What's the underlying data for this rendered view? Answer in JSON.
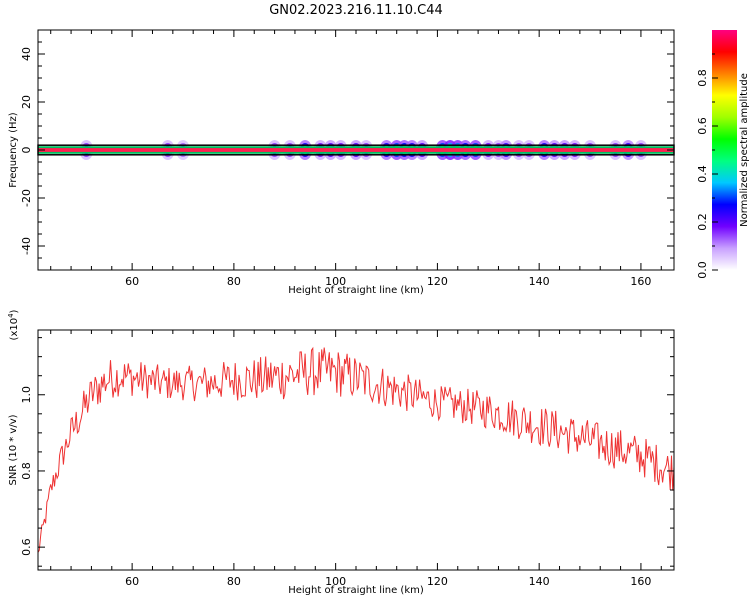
{
  "title": "GN02.2023.216.11.10.C44",
  "chart_data": [
    {
      "type": "heatmap",
      "xlabel": "Height of straight line (km)",
      "ylabel": "Frequency (Hz)",
      "xlim": [
        41.5,
        166.5
      ],
      "ylim": [
        -50,
        50
      ],
      "x_ticks": [
        60,
        80,
        100,
        120,
        140,
        160
      ],
      "y_ticks": [
        -40,
        -20,
        0,
        20,
        40
      ],
      "colorbar": {
        "label": "Normalized spectral amplitude",
        "range": [
          0,
          1
        ],
        "ticks": [
          0.0,
          0.2,
          0.4,
          0.6,
          0.8
        ],
        "tick_labels": [
          "0.0",
          "0.2",
          "0.4",
          "0.6",
          "0.8"
        ],
        "colormap": [
          "#ffffff",
          "#c8a0ff",
          "#7000ff",
          "#0000ff",
          "#00c8ff",
          "#00ff80",
          "#00ff00",
          "#a0ff00",
          "#ffff00",
          "#ff8000",
          "#ff0000",
          "#ff0080"
        ]
      },
      "band": {
        "center_hz": 0,
        "core_halfwidth_hz": 0.8,
        "box_halfwidth_hz": 2,
        "core_color": "#ff2050",
        "edge_color": "#00c060",
        "box_color": "#000000"
      },
      "blobs": [
        {
          "x": 51,
          "amp": 0.3
        },
        {
          "x": 67,
          "amp": 0.3
        },
        {
          "x": 70,
          "amp": 0.25
        },
        {
          "x": 88,
          "amp": 0.3
        },
        {
          "x": 91,
          "amp": 0.3
        },
        {
          "x": 94,
          "amp": 0.5
        },
        {
          "x": 97,
          "amp": 0.35
        },
        {
          "x": 99,
          "amp": 0.4
        },
        {
          "x": 101,
          "amp": 0.35
        },
        {
          "x": 104,
          "amp": 0.4
        },
        {
          "x": 106,
          "amp": 0.3
        },
        {
          "x": 110,
          "amp": 0.5
        },
        {
          "x": 112,
          "amp": 0.6
        },
        {
          "x": 113.5,
          "amp": 0.55
        },
        {
          "x": 115,
          "amp": 0.5
        },
        {
          "x": 117,
          "amp": 0.4
        },
        {
          "x": 121,
          "amp": 0.6
        },
        {
          "x": 122.5,
          "amp": 0.7
        },
        {
          "x": 124,
          "amp": 0.65
        },
        {
          "x": 125.5,
          "amp": 0.55
        },
        {
          "x": 127.5,
          "amp": 0.6
        },
        {
          "x": 130,
          "amp": 0.35
        },
        {
          "x": 132,
          "amp": 0.3
        },
        {
          "x": 133.5,
          "amp": 0.45
        },
        {
          "x": 136,
          "amp": 0.3
        },
        {
          "x": 138,
          "amp": 0.3
        },
        {
          "x": 141,
          "amp": 0.5
        },
        {
          "x": 143,
          "amp": 0.4
        },
        {
          "x": 145,
          "amp": 0.4
        },
        {
          "x": 147,
          "amp": 0.35
        },
        {
          "x": 150,
          "amp": 0.3
        },
        {
          "x": 155,
          "amp": 0.3
        },
        {
          "x": 157.5,
          "amp": 0.45
        },
        {
          "x": 160,
          "amp": 0.3
        }
      ]
    },
    {
      "type": "line",
      "xlabel": "Height of straight line (km)",
      "ylabel": "SNR (10 * v/v)",
      "scale_label": "(x10",
      "scale_exponent": "4",
      "scale_close": ")",
      "xlim": [
        41.5,
        166.5
      ],
      "ylim": [
        0.54,
        1.17
      ],
      "x_ticks": [
        60,
        80,
        100,
        120,
        140,
        160
      ],
      "y_ticks": [
        0.6,
        0.8,
        1.0
      ],
      "y_tick_labels": [
        "0.6",
        "0.8",
        "1.0"
      ],
      "color": "#ee3333",
      "x_step": 0.25,
      "envelope": {
        "x": [
          41.5,
          42,
          43,
          44,
          46,
          48,
          50,
          52,
          55,
          58,
          62,
          66,
          70,
          75,
          80,
          85,
          90,
          95,
          100,
          105,
          110,
          115,
          120,
          125,
          130,
          135,
          140,
          145,
          150,
          155,
          160,
          163,
          166.5
        ],
        "y": [
          0.58,
          0.62,
          0.68,
          0.75,
          0.83,
          0.9,
          0.95,
          1.0,
          1.04,
          1.05,
          1.04,
          1.03,
          1.03,
          1.03,
          1.04,
          1.04,
          1.05,
          1.06,
          1.06,
          1.04,
          1.02,
          1.0,
          0.98,
          0.97,
          0.96,
          0.94,
          0.92,
          0.9,
          0.88,
          0.86,
          0.84,
          0.82,
          0.8
        ]
      },
      "noise": {
        "x": [
          41.5,
          45,
          50,
          55,
          60,
          70,
          80,
          90,
          100,
          110,
          120,
          130,
          140,
          150,
          160,
          166.5
        ],
        "amp": [
          0.02,
          0.035,
          0.05,
          0.055,
          0.05,
          0.045,
          0.055,
          0.065,
          0.065,
          0.055,
          0.045,
          0.05,
          0.055,
          0.055,
          0.055,
          0.055
        ]
      }
    }
  ]
}
